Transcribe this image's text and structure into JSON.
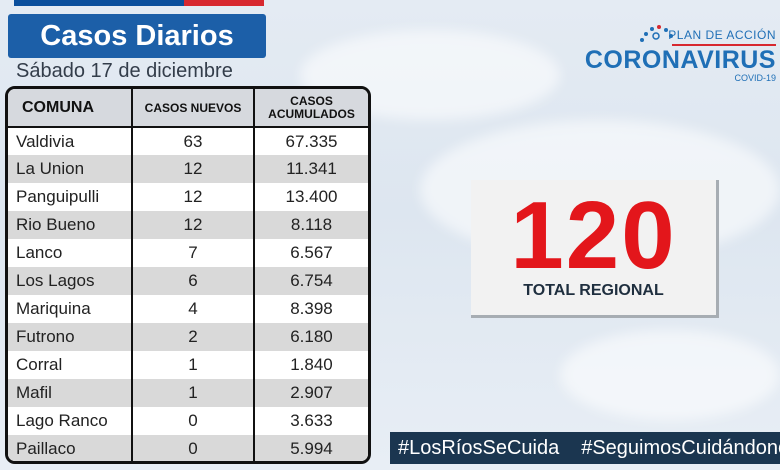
{
  "header": {
    "title": "Casos Diarios",
    "date": "Sábado 17 de diciembre"
  },
  "logo": {
    "top_text": "PLAN DE ACCIÓN",
    "main_text": "CORONAVIRUS",
    "sub_text": "COVID-19"
  },
  "table": {
    "headers": {
      "comuna": "COMUNA",
      "casos_nuevos": "CASOS NUEVOS",
      "casos_acumulados_1": "CASOS",
      "casos_acumulados_2": "ACUMULADOS"
    },
    "rows": [
      {
        "comuna": "Valdivia",
        "nuevos": "63",
        "acumulados": "67.335"
      },
      {
        "comuna": "La Union",
        "nuevos": "12",
        "acumulados": "11.341"
      },
      {
        "comuna": "Panguipulli",
        "nuevos": "12",
        "acumulados": "13.400"
      },
      {
        "comuna": "Rio Bueno",
        "nuevos": "12",
        "acumulados": "8.118"
      },
      {
        "comuna": "Lanco",
        "nuevos": "7",
        "acumulados": "6.567"
      },
      {
        "comuna": "Los Lagos",
        "nuevos": "6",
        "acumulados": "6.754"
      },
      {
        "comuna": "Mariquina",
        "nuevos": "4",
        "acumulados": "8.398"
      },
      {
        "comuna": "Futrono",
        "nuevos": "2",
        "acumulados": "6.180"
      },
      {
        "comuna": "Corral",
        "nuevos": "1",
        "acumulados": "1.840"
      },
      {
        "comuna": "Mafil",
        "nuevos": "1",
        "acumulados": "2.907"
      },
      {
        "comuna": "Lago Ranco",
        "nuevos": "0",
        "acumulados": "3.633"
      },
      {
        "comuna": "Paillaco",
        "nuevos": "0",
        "acumulados": "5.994"
      }
    ]
  },
  "total": {
    "value": "120",
    "label": "TOTAL REGIONAL"
  },
  "hashtags": [
    "#LosRíosSeCuida",
    "#SeguimosCuidándonos"
  ],
  "colors": {
    "title_blue": "#1c5fa8",
    "total_red": "#e3161b",
    "hashtag_bg": "#1b3650",
    "logo_blue": "#1f6fb6"
  }
}
